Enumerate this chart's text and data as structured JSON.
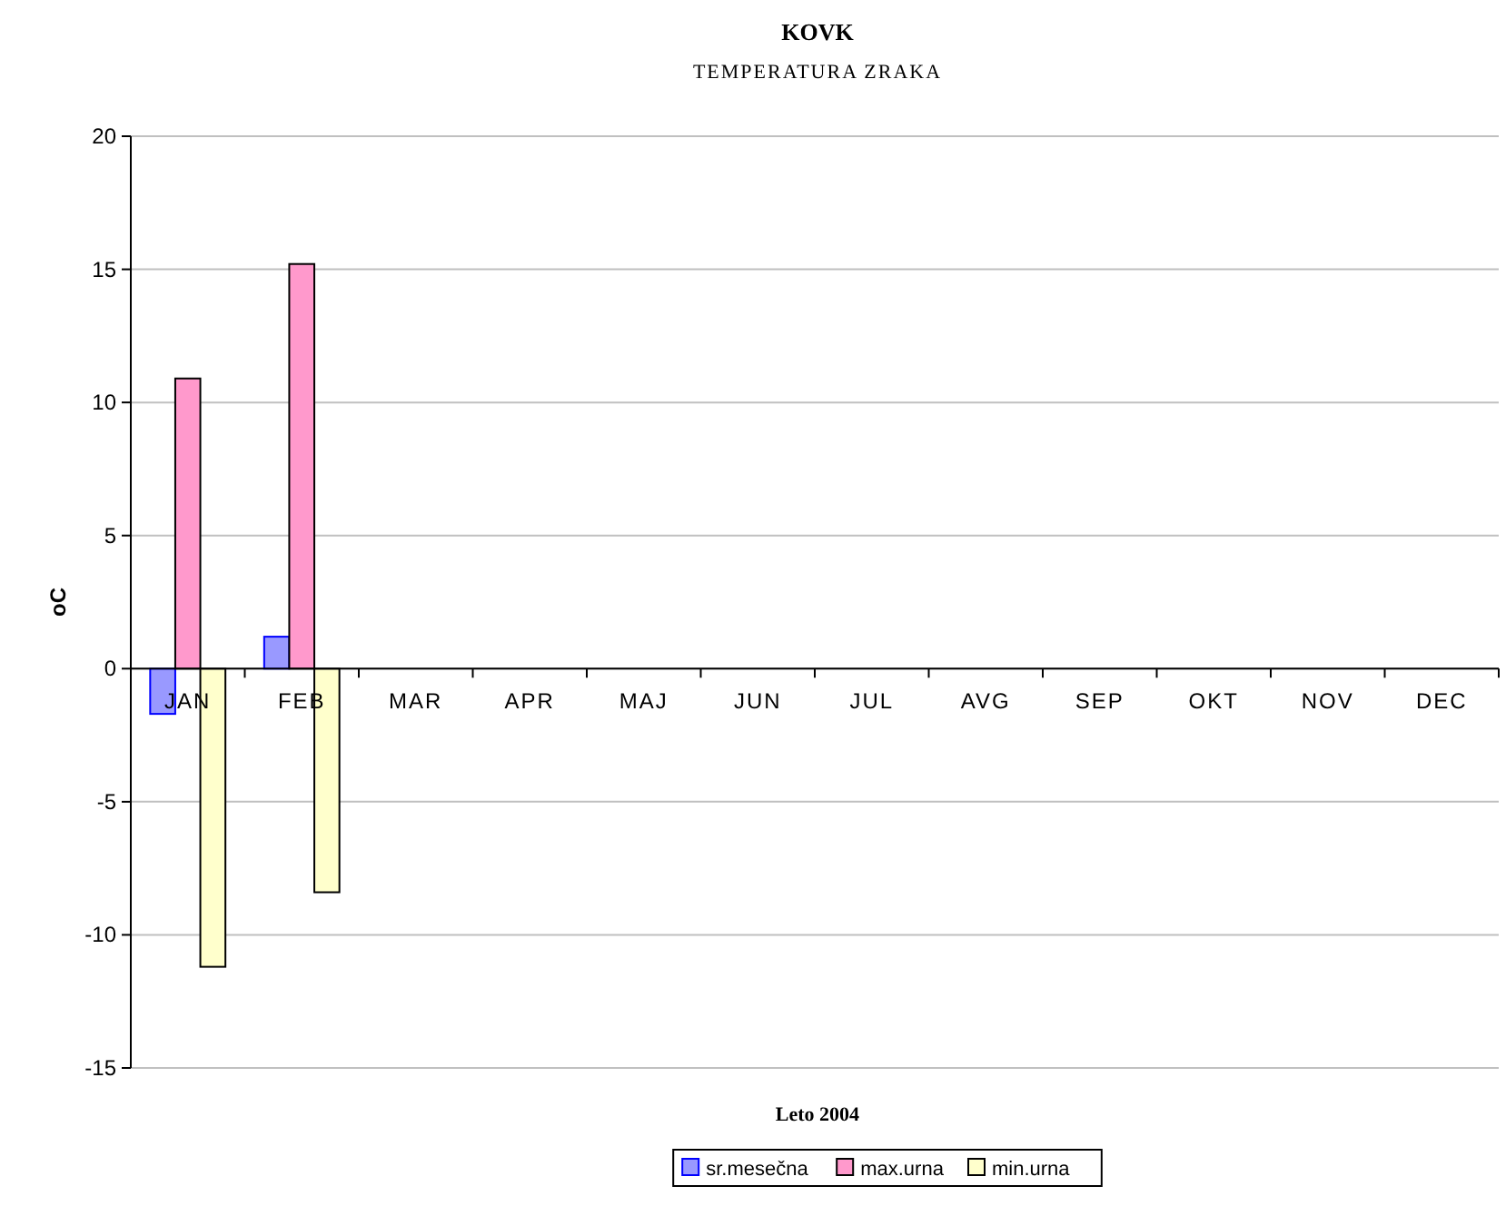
{
  "chart_data": {
    "type": "bar",
    "title": "KOVK",
    "subtitle": "TEMPERATURA ZRAKA",
    "xlabel": "Leto 2004",
    "ylabel": "oC",
    "categories": [
      "JAN",
      "FEB",
      "MAR",
      "APR",
      "MAJ",
      "JUN",
      "JUL",
      "AVG",
      "SEP",
      "OKT",
      "NOV",
      "DEC"
    ],
    "series": [
      {
        "name": "sr.mesečna",
        "color": "#9999ff",
        "values": [
          -1.7,
          1.2,
          null,
          null,
          null,
          null,
          null,
          null,
          null,
          null,
          null,
          null
        ]
      },
      {
        "name": "max.urna",
        "color": "#ff99cc",
        "values": [
          10.9,
          15.2,
          null,
          null,
          null,
          null,
          null,
          null,
          null,
          null,
          null,
          null
        ]
      },
      {
        "name": "min.urna",
        "color": "#ffffcc",
        "values": [
          -11.2,
          -8.4,
          null,
          null,
          null,
          null,
          null,
          null,
          null,
          null,
          null,
          null
        ]
      }
    ],
    "ylim": [
      -15,
      20
    ],
    "yticks": [
      -15,
      -10,
      -5,
      0,
      5,
      10,
      15,
      20
    ],
    "grid": "y",
    "legend": "bottom"
  }
}
